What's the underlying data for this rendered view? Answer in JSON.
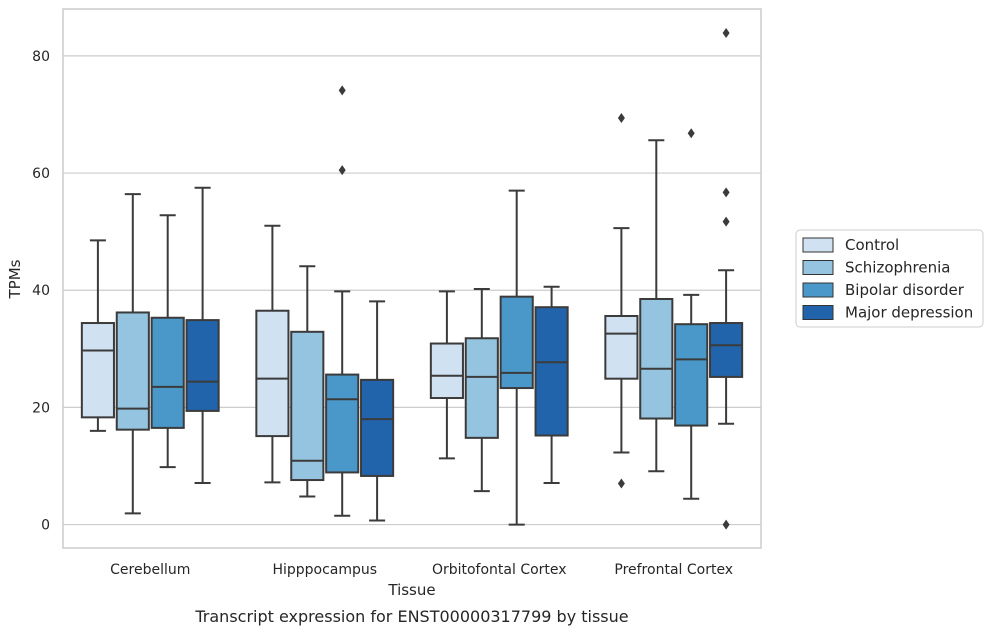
{
  "chart_data": {
    "type": "box",
    "title": "",
    "xlabel": "Tissue",
    "ylabel": "TPMs",
    "caption": "Transcript expression for ENST00000317799 by tissue",
    "categories": [
      "Cerebellum",
      "Hipppocampus",
      "Orbitofontal Cortex",
      "Prefrontal Cortex"
    ],
    "ylim": [
      -4,
      88
    ],
    "yticks": [
      0,
      20,
      40,
      60,
      80
    ],
    "grid": true,
    "legend_position": "right",
    "series": [
      {
        "name": "Control",
        "color": "#d0e1f2",
        "boxes": [
          {
            "whislo": 16,
            "q1": 18.3,
            "median": 29.7,
            "q3": 34.4,
            "whishi": 48.5,
            "fliers": []
          },
          {
            "whislo": 7.2,
            "q1": 15.1,
            "median": 24.9,
            "q3": 36.5,
            "whishi": 51,
            "fliers": []
          },
          {
            "whislo": 11.3,
            "q1": 21.6,
            "median": 25.4,
            "q3": 30.9,
            "whishi": 39.8,
            "fliers": []
          },
          {
            "whislo": 12.3,
            "q1": 24.9,
            "median": 32.6,
            "q3": 35.6,
            "whishi": 50.6,
            "fliers": [
              7,
              69.4
            ]
          }
        ]
      },
      {
        "name": "Schizophrenia",
        "color": "#94c4df",
        "boxes": [
          {
            "whislo": 1.9,
            "q1": 16.2,
            "median": 19.8,
            "q3": 36.2,
            "whishi": 56.4,
            "fliers": []
          },
          {
            "whislo": 4.8,
            "q1": 7.6,
            "median": 10.9,
            "q3": 32.9,
            "whishi": 44.1,
            "fliers": []
          },
          {
            "whislo": 5.7,
            "q1": 14.8,
            "median": 25.2,
            "q3": 31.8,
            "whishi": 40.2,
            "fliers": []
          },
          {
            "whislo": 9.1,
            "q1": 18.1,
            "median": 26.6,
            "q3": 38.5,
            "whishi": 65.6,
            "fliers": []
          }
        ]
      },
      {
        "name": "Bipolar disorder",
        "color": "#4a98c9",
        "boxes": [
          {
            "whislo": 9.8,
            "q1": 16.5,
            "median": 23.5,
            "q3": 35.3,
            "whishi": 52.8,
            "fliers": []
          },
          {
            "whislo": 1.5,
            "q1": 8.9,
            "median": 21.4,
            "q3": 25.6,
            "whishi": 39.8,
            "fliers": [
              60.5,
              74.1
            ]
          },
          {
            "whislo": 0,
            "q1": 23.3,
            "median": 25.9,
            "q3": 38.9,
            "whishi": 57,
            "fliers": []
          },
          {
            "whislo": 4.4,
            "q1": 16.9,
            "median": 28.2,
            "q3": 34.2,
            "whishi": 39.2,
            "fliers": [
              66.8
            ]
          }
        ]
      },
      {
        "name": "Major depression",
        "color": "#2164ab",
        "boxes": [
          {
            "whislo": 7.1,
            "q1": 19.4,
            "median": 24.4,
            "q3": 34.9,
            "whishi": 57.5,
            "fliers": []
          },
          {
            "whislo": 0.7,
            "q1": 8.3,
            "median": 18,
            "q3": 24.7,
            "whishi": 38.1,
            "fliers": []
          },
          {
            "whislo": 7.1,
            "q1": 15.2,
            "median": 27.7,
            "q3": 37.1,
            "whishi": 40.6,
            "fliers": []
          },
          {
            "whislo": 17.2,
            "q1": 25.2,
            "median": 30.6,
            "q3": 34.4,
            "whishi": 43.4,
            "fliers": [
              0,
              51.7,
              56.7,
              83.9
            ]
          }
        ]
      }
    ]
  }
}
